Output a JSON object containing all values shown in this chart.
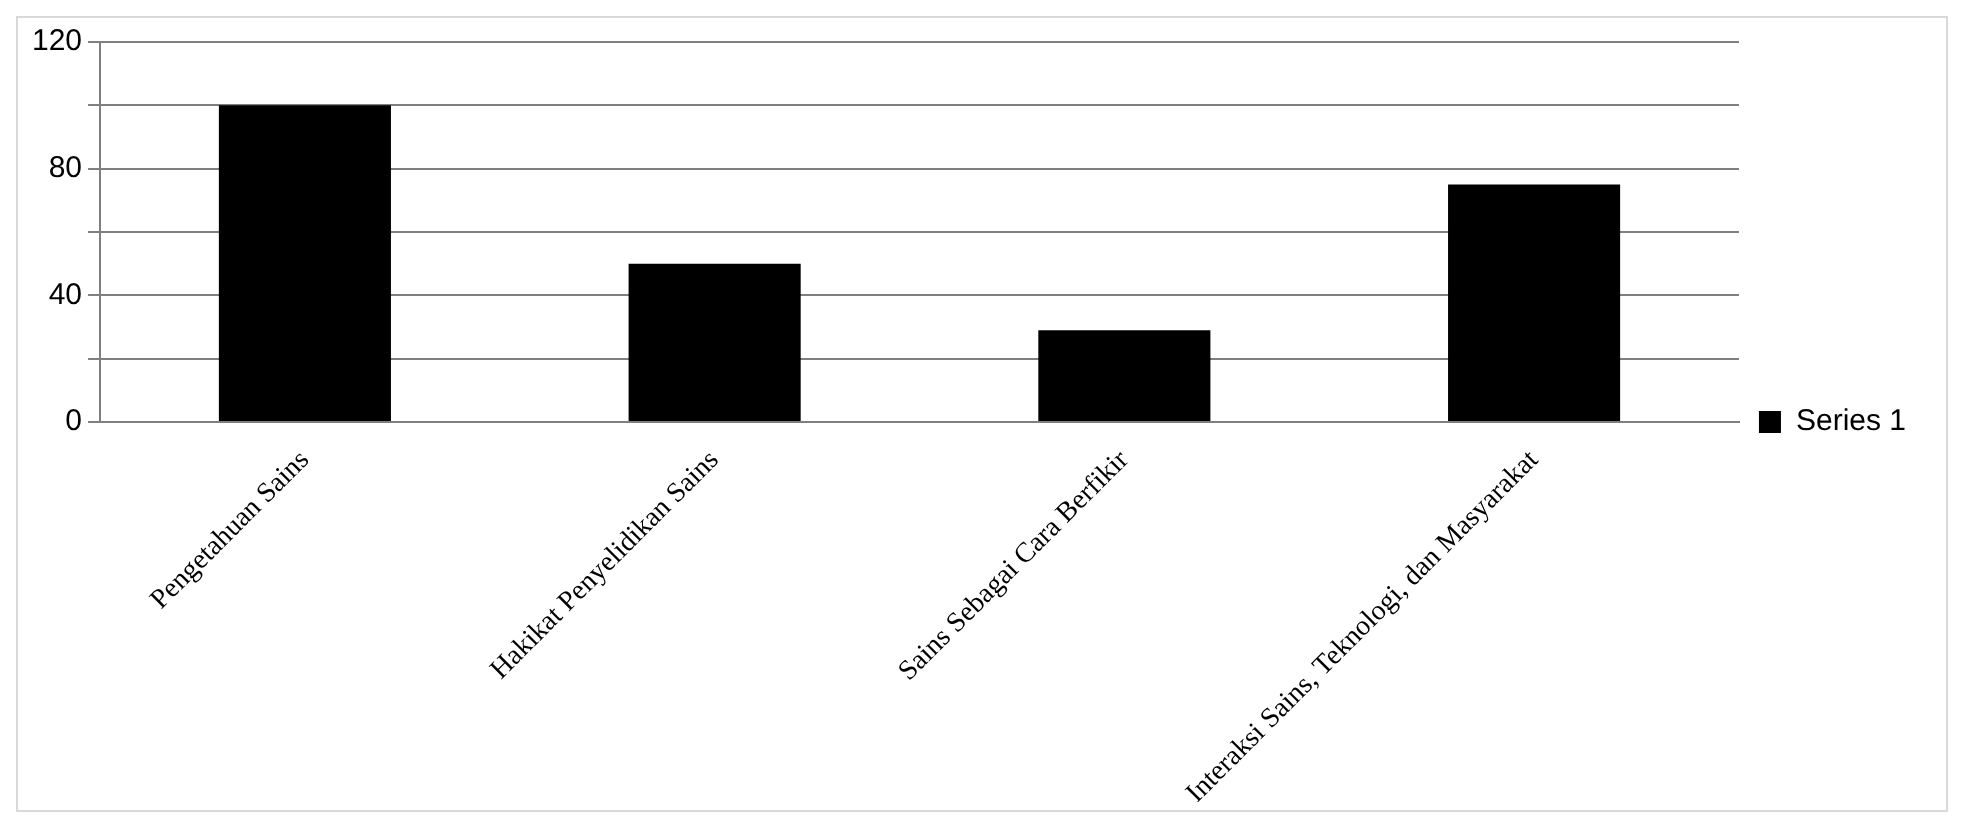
{
  "chart_data": {
    "type": "bar",
    "categories": [
      "Pengetahuan Sains",
      "Hakikat Penyelidikan Sains",
      "Sains Sebagai Cara Berfikir",
      "Interaksi Sains, Teknologi, dan Masyarakat"
    ],
    "series": [
      {
        "name": "Series 1",
        "color": "#000000",
        "values": [
          100,
          50,
          29,
          75
        ]
      }
    ],
    "ylim": [
      0,
      120
    ],
    "yticks": [
      0,
      {
        "value": 20,
        "label": null
      },
      40,
      {
        "value": 60,
        "label": null
      },
      80,
      {
        "value": 100,
        "label": null
      },
      120
    ],
    "grid": "y",
    "legend": "right"
  }
}
